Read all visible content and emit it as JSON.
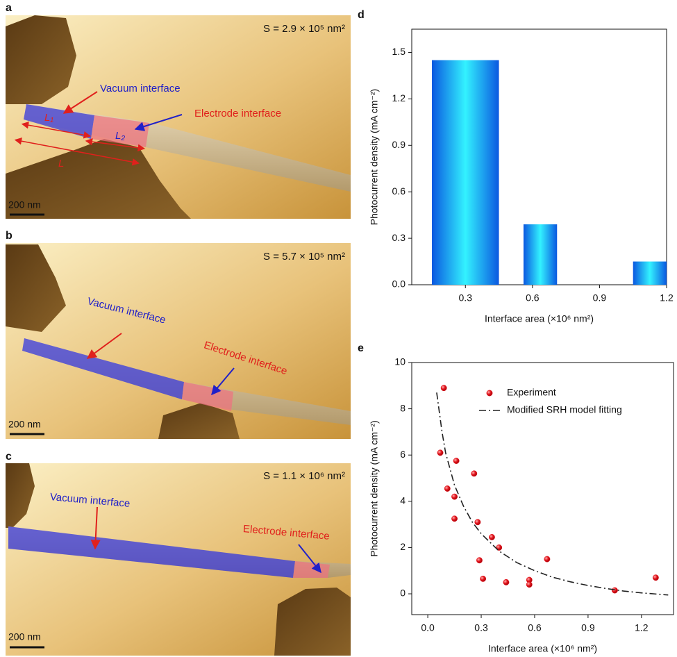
{
  "panels": [
    {
      "label": "a",
      "area": "S = 2.9 × 10⁵ nm²",
      "vacuum": "Vacuum interface",
      "electrode": "Electrode interface",
      "lengths": [
        "L₁",
        "L₂",
        "L"
      ],
      "scale_bar": "200 nm"
    },
    {
      "label": "b",
      "area": "S = 5.7 × 10⁵ nm²",
      "vacuum": "Vacuum interface",
      "electrode": "Electrode interface",
      "scale_bar": "200 nm"
    },
    {
      "label": "c",
      "area": "S = 1.1 × 10⁶ nm²",
      "vacuum": "Vacuum interface",
      "electrode": "Electrode interface",
      "scale_bar": "200 nm"
    }
  ],
  "chart_data": [
    {
      "type": "bar",
      "label": "d",
      "xlabel": "Interface area (×10⁶ nm²)",
      "ylabel": "Photocurrent density (mA cm⁻²)",
      "x": [
        0.3,
        0.635,
        1.125
      ],
      "widths": [
        0.3,
        0.15,
        0.15
      ],
      "values": [
        1.45,
        0.39,
        0.15
      ],
      "gradient": [
        "#0a58e0",
        "#33f2ff",
        "#0a58e0"
      ],
      "xlim": [
        0.06,
        1.2
      ],
      "ylim": [
        0,
        1.65
      ],
      "xticks": [
        0.3,
        0.6,
        0.9,
        1.2
      ],
      "yticks": [
        {
          "value": 0,
          "label": "0.0"
        },
        0.3,
        0.6,
        0.9,
        1.2,
        1.5
      ]
    },
    {
      "type": "scatter",
      "label": "e",
      "xlabel": "Interface area (×10⁶ nm²)",
      "ylabel": "Photocurrent density (mA cm⁻²)",
      "legend": "upper right",
      "series": [
        {
          "name": "Experiment",
          "type": "scatter",
          "color": "#e3141c",
          "x": [
            0.09,
            0.07,
            0.16,
            0.11,
            0.15,
            0.26,
            0.15,
            0.28,
            0.29,
            0.36,
            0.4,
            0.31,
            0.44,
            0.57,
            0.57,
            0.67,
            1.05,
            1.28
          ],
          "values": [
            8.9,
            6.1,
            5.75,
            4.55,
            4.2,
            5.2,
            3.25,
            3.1,
            1.45,
            2.45,
            2.0,
            0.65,
            0.5,
            0.6,
            0.4,
            1.5,
            0.15,
            0.7
          ]
        },
        {
          "name": "Modified SRH model fitting",
          "type": "line",
          "color": "#222222",
          "dash": "dashdot",
          "x": [
            0.05,
            0.08,
            0.1,
            0.15,
            0.2,
            0.25,
            0.3,
            0.4,
            0.5,
            0.6,
            0.7,
            0.8,
            0.9,
            1.0,
            1.1,
            1.2,
            1.3,
            1.35
          ],
          "values": [
            8.7,
            7.0,
            6.1,
            4.7,
            3.8,
            3.1,
            2.6,
            1.85,
            1.35,
            1.0,
            0.72,
            0.52,
            0.36,
            0.23,
            0.12,
            0.04,
            -0.02,
            -0.05
          ]
        }
      ],
      "xlim": [
        -0.09,
        1.38
      ],
      "ylim": [
        -0.9,
        10
      ],
      "xticks": [
        {
          "value": 0,
          "label": "0.0"
        },
        0.3,
        0.6,
        0.9,
        1.2
      ],
      "yticks": [
        0,
        2,
        4,
        6,
        8,
        10
      ]
    }
  ]
}
